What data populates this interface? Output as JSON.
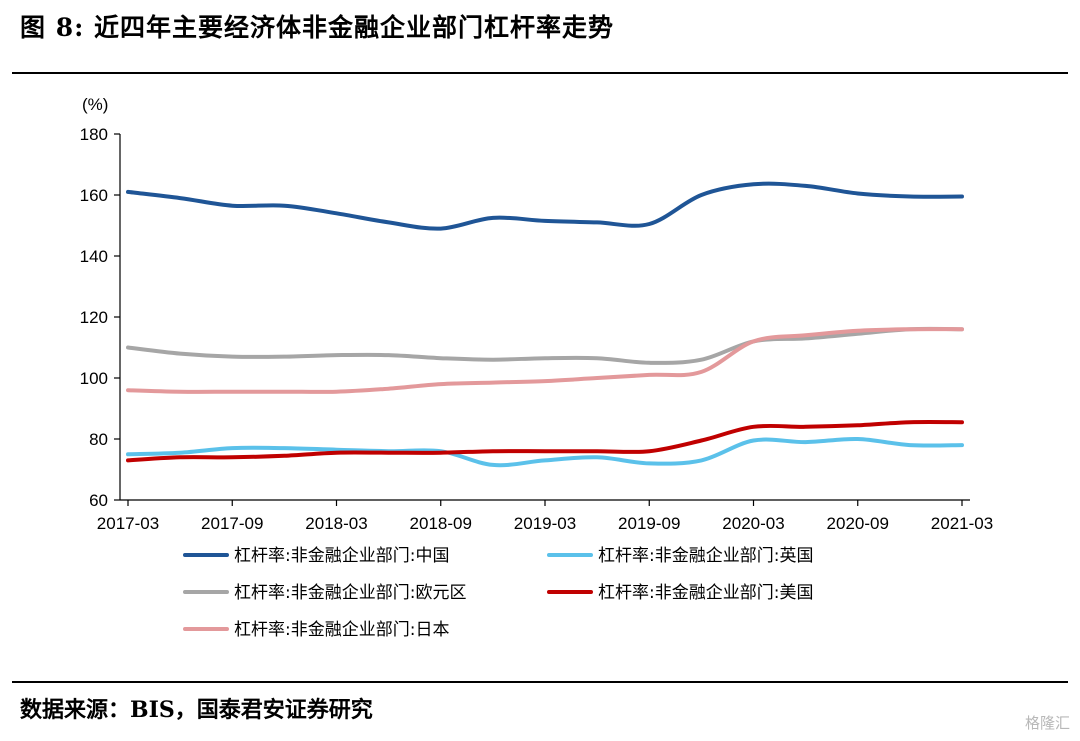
{
  "figure_title": "图 8:  近四年主要经济体非金融企业部门杠杆率走势",
  "source_note": "数据来源：BIS，国泰君安证券研究",
  "watermark": "格隆汇",
  "chart_data": {
    "type": "line",
    "title": "",
    "xlabel": "",
    "ylabel": "(%)",
    "ylim": [
      60,
      180
    ],
    "yticks": [
      60,
      80,
      100,
      120,
      140,
      160,
      180
    ],
    "x": [
      "2017-03",
      "2017-06",
      "2017-09",
      "2017-12",
      "2018-03",
      "2018-06",
      "2018-09",
      "2018-12",
      "2019-03",
      "2019-06",
      "2019-09",
      "2019-12",
      "2020-03",
      "2020-06",
      "2020-09",
      "2020-12",
      "2021-03"
    ],
    "xticks": [
      "2017-03",
      "2017-09",
      "2018-03",
      "2018-09",
      "2019-03",
      "2019-09",
      "2020-03",
      "2020-09",
      "2021-03"
    ],
    "grid": false,
    "legend_position": "bottom",
    "series": [
      {
        "name": "杠杆率:非金融企业部门:中国",
        "color": "#1f5596",
        "values": [
          161,
          159,
          156.5,
          156.5,
          154,
          151,
          149,
          152.5,
          151.5,
          151,
          150.5,
          160,
          163.5,
          163,
          160.5,
          159.5,
          159.5
        ]
      },
      {
        "name": "杠杆率:非金融企业部门:英国",
        "color": "#5bc1ea",
        "values": [
          75,
          75.5,
          77,
          77,
          76.5,
          76,
          76,
          71.5,
          73,
          74,
          72,
          73,
          79.5,
          79,
          80,
          78,
          78
        ]
      },
      {
        "name": "杠杆率:非金融企业部门:欧元区",
        "color": "#a6a6a6",
        "values": [
          110,
          108,
          107,
          107,
          107.5,
          107.5,
          106.5,
          106,
          106.5,
          106.5,
          105,
          106,
          112,
          113,
          114.5,
          116,
          116
        ]
      },
      {
        "name": "杠杆率:非金融企业部门:美国",
        "color": "#c00000",
        "values": [
          73,
          74,
          74,
          74.5,
          75.5,
          75.5,
          75.5,
          76,
          76,
          76,
          76,
          79.5,
          84,
          84,
          84.5,
          85.5,
          85.5
        ]
      },
      {
        "name": "杠杆率:非金融企业部门:日本",
        "color": "#e3999b",
        "values": [
          96,
          95.5,
          95.5,
          95.5,
          95.5,
          96.5,
          98,
          98.5,
          99,
          100,
          101,
          102,
          112,
          114,
          115.5,
          116,
          116
        ]
      }
    ]
  }
}
